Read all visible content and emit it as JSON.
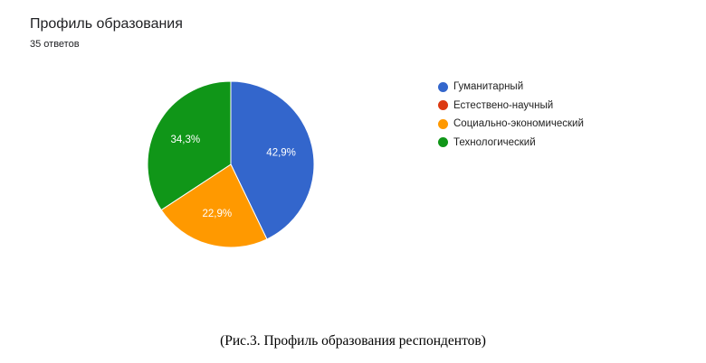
{
  "header": {
    "title": "Профиль образования",
    "subtitle": "35 ответов"
  },
  "chart_data": {
    "type": "pie",
    "title": "Профиль образования",
    "subtitle": "35 ответов",
    "legend_position": "right",
    "start_angle_deg": 0,
    "direction": "clockwise",
    "slices": [
      {
        "name": "Гуманитарный",
        "value": 42.9,
        "label": "42,9%",
        "color": "#3366CC"
      },
      {
        "name": "Естествено-научный",
        "value": 0,
        "label": "",
        "color": "#DC3912"
      },
      {
        "name": "Социально-экономический",
        "value": 22.9,
        "label": "22,9%",
        "color": "#FF9900"
      },
      {
        "name": "Технологический",
        "value": 34.3,
        "label": "34,3%",
        "color": "#109618"
      }
    ]
  },
  "caption": "(Рис.3. Профиль образования респондентов)"
}
